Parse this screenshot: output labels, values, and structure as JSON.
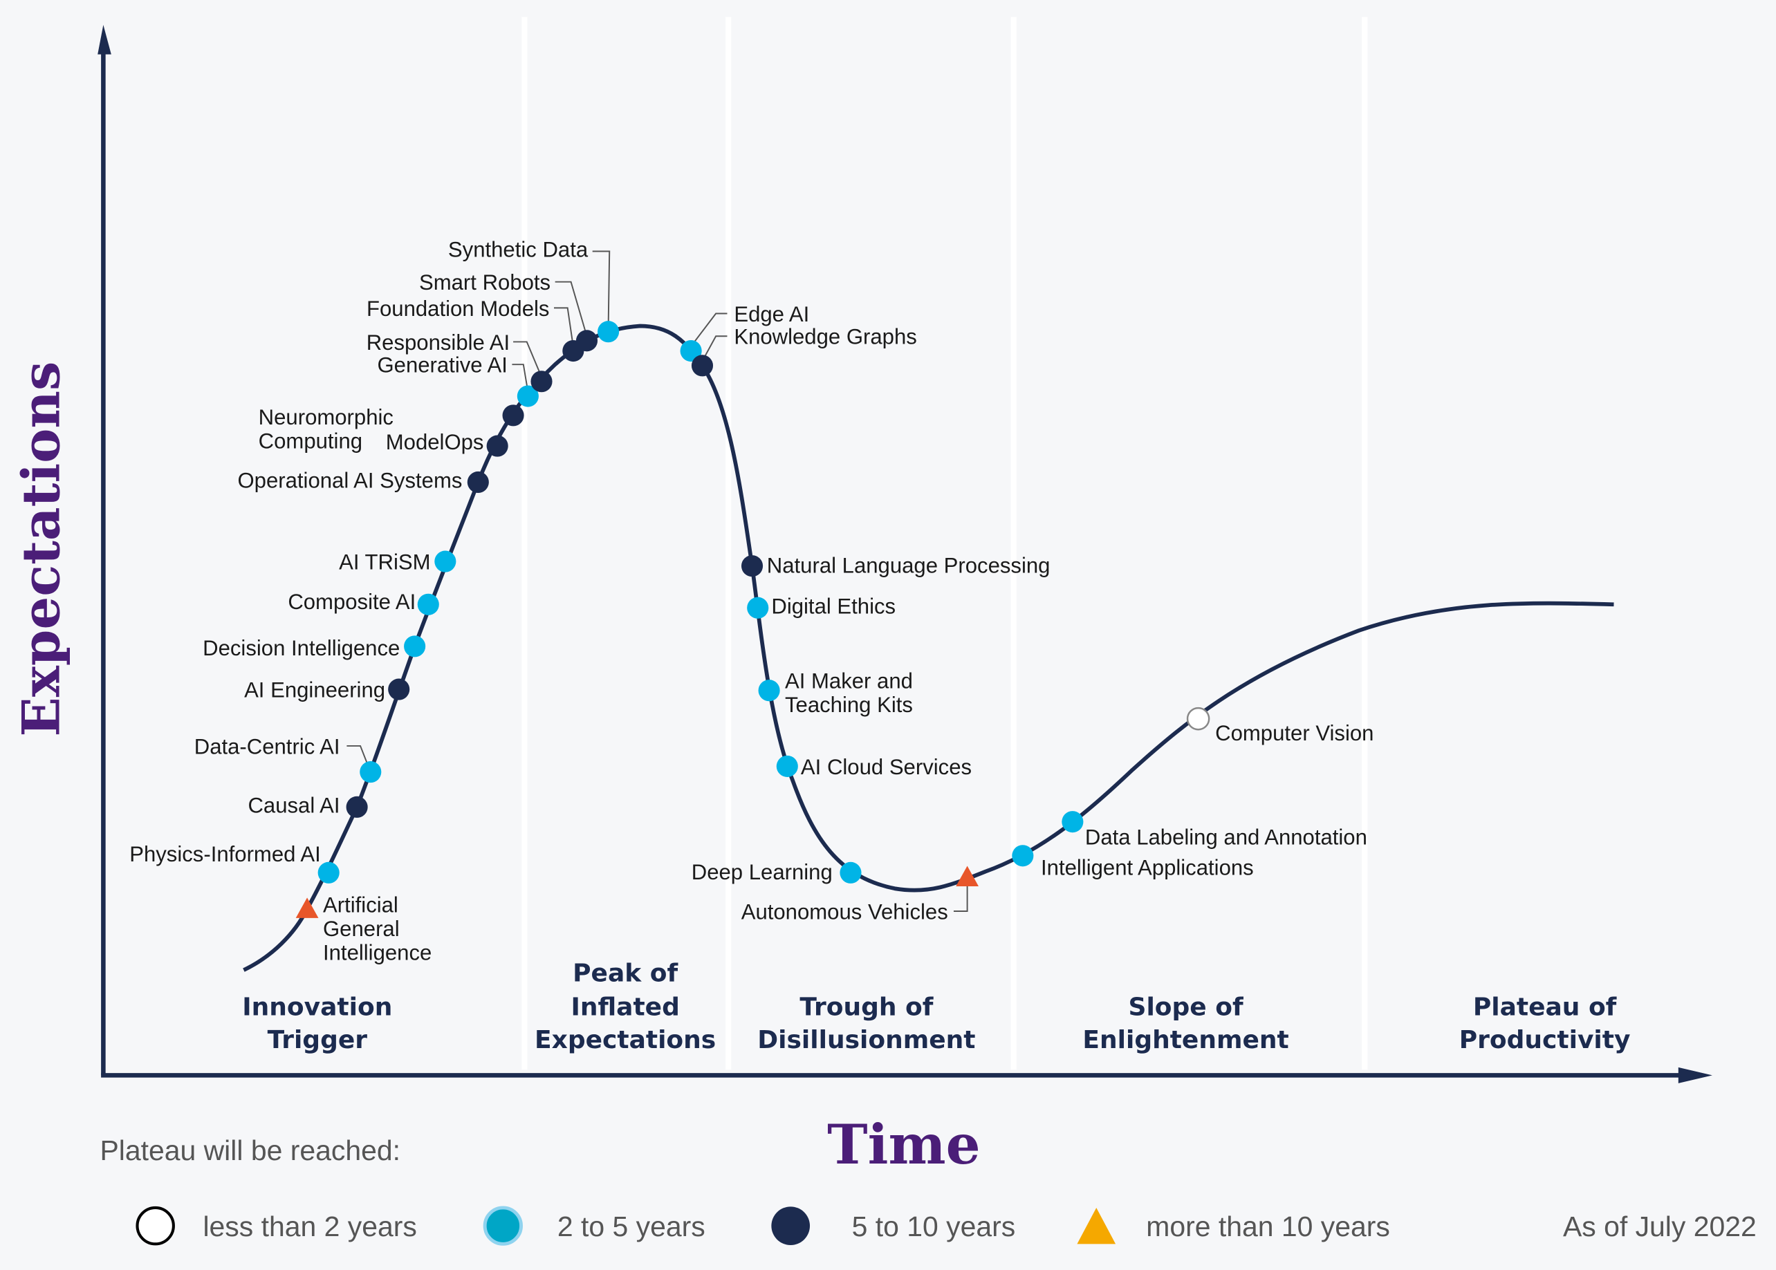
{
  "chart_data": {
    "type": "hype-cycle",
    "y_axis_label": "Expectations",
    "x_axis_label": "Time",
    "phases": [
      "Innovation Trigger",
      "Peak of Inflated Expectations",
      "Trough of Disillusionment",
      "Slope of Enlightenment",
      "Plateau of Productivity"
    ],
    "legend_title": "Plateau will be reached:",
    "legend": [
      {
        "key": "lt2",
        "label": "less than 2 years",
        "shape": "circle",
        "color": "#ffffff"
      },
      {
        "key": "2to5",
        "label": "2 to 5 years",
        "shape": "circle",
        "color": "#00b4e6"
      },
      {
        "key": "5to10",
        "label": "5 to 10 years",
        "shape": "circle",
        "color": "#1c2b4f"
      },
      {
        "key": "gt10",
        "label": "more than 10 years",
        "shape": "triangle",
        "color": "#f5a800"
      }
    ],
    "as_of": "As of July 2022",
    "technologies": [
      {
        "name": "Artificial\nGeneral\nIntelligence",
        "phase": "Innovation Trigger",
        "plateau": "gt10"
      },
      {
        "name": "Physics-Informed AI",
        "phase": "Innovation Trigger",
        "plateau": "2to5"
      },
      {
        "name": "Causal AI",
        "phase": "Innovation Trigger",
        "plateau": "5to10"
      },
      {
        "name": "Data-Centric AI",
        "phase": "Innovation Trigger",
        "plateau": "2to5"
      },
      {
        "name": "AI Engineering",
        "phase": "Innovation Trigger",
        "plateau": "5to10"
      },
      {
        "name": "Decision Intelligence",
        "phase": "Innovation Trigger",
        "plateau": "2to5"
      },
      {
        "name": "Composite AI",
        "phase": "Innovation Trigger",
        "plateau": "2to5"
      },
      {
        "name": "AI TRiSM",
        "phase": "Innovation Trigger",
        "plateau": "2to5"
      },
      {
        "name": "Operational AI Systems",
        "phase": "Innovation Trigger",
        "plateau": "5to10"
      },
      {
        "name": "ModelOps",
        "phase": "Innovation Trigger",
        "plateau": "5to10"
      },
      {
        "name": "Neuromorphic\nComputing",
        "phase": "Innovation Trigger",
        "plateau": "5to10"
      },
      {
        "name": "Generative AI",
        "phase": "Peak of Inflated Expectations",
        "plateau": "2to5"
      },
      {
        "name": "Responsible AI",
        "phase": "Peak of Inflated Expectations",
        "plateau": "5to10"
      },
      {
        "name": "Foundation Models",
        "phase": "Peak of Inflated Expectations",
        "plateau": "5to10"
      },
      {
        "name": "Smart Robots",
        "phase": "Peak of Inflated Expectations",
        "plateau": "5to10"
      },
      {
        "name": "Synthetic Data",
        "phase": "Peak of Inflated Expectations",
        "plateau": "2to5"
      },
      {
        "name": "Edge AI",
        "phase": "Peak of Inflated Expectations",
        "plateau": "2to5"
      },
      {
        "name": "Knowledge Graphs",
        "phase": "Peak of Inflated Expectations",
        "plateau": "5to10"
      },
      {
        "name": "Natural Language Processing",
        "phase": "Trough of Disillusionment",
        "plateau": "5to10"
      },
      {
        "name": "Digital Ethics",
        "phase": "Trough of Disillusionment",
        "plateau": "2to5"
      },
      {
        "name": "AI Maker and\nTeaching Kits",
        "phase": "Trough of Disillusionment",
        "plateau": "2to5"
      },
      {
        "name": "AI Cloud Services",
        "phase": "Trough of Disillusionment",
        "plateau": "2to5"
      },
      {
        "name": "Deep Learning",
        "phase": "Trough of Disillusionment",
        "plateau": "2to5"
      },
      {
        "name": "Autonomous Vehicles",
        "phase": "Trough of Disillusionment",
        "plateau": "gt10"
      },
      {
        "name": "Intelligent Applications",
        "phase": "Slope of Enlightenment",
        "plateau": "2to5"
      },
      {
        "name": "Data Labeling and Annotation",
        "phase": "Slope of Enlightenment",
        "plateau": "2to5"
      },
      {
        "name": "Computer Vision",
        "phase": "Slope of Enlightenment",
        "plateau": "lt2"
      }
    ]
  }
}
